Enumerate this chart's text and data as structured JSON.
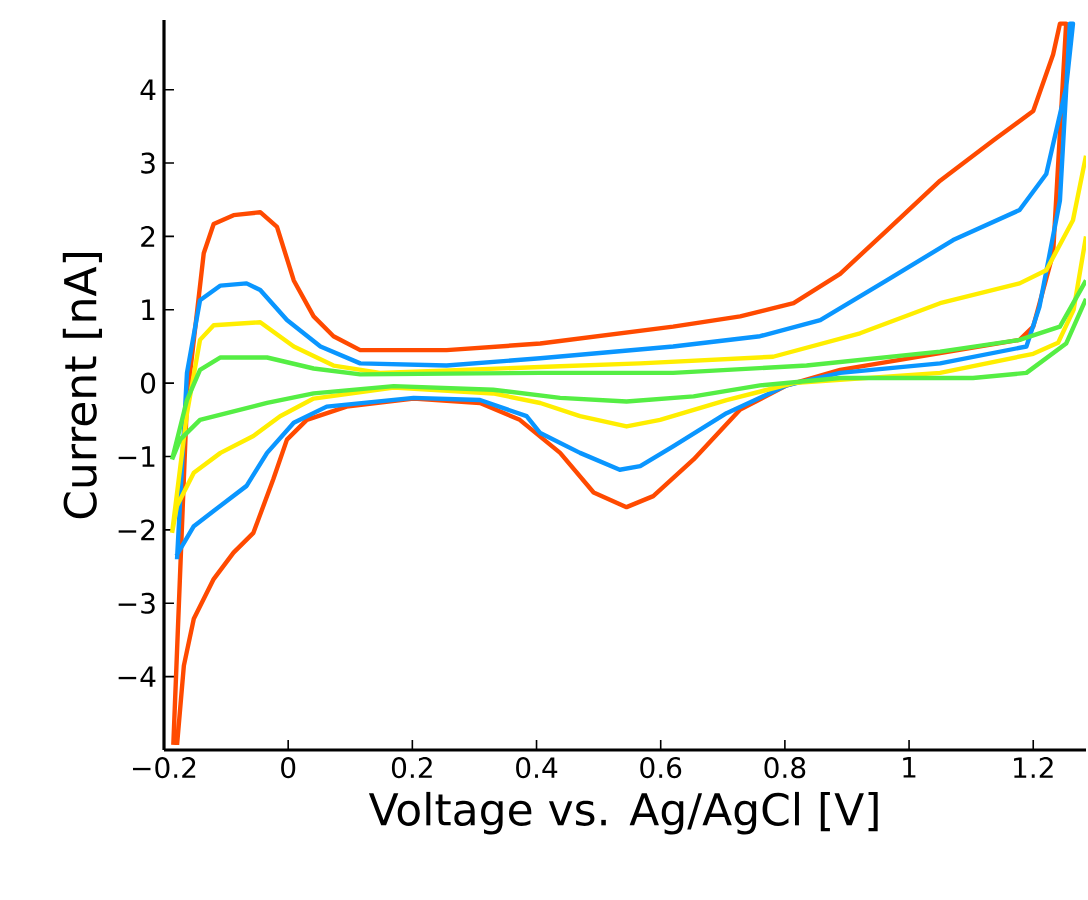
{
  "chart_data": {
    "type": "line",
    "xlabel": "Voltage vs. Ag/AgCl [V]",
    "ylabel": "Current [nA]",
    "xlim": [
      -0.2,
      1.285
    ],
    "ylim": [
      -5,
      4.95
    ],
    "xticks": [
      {
        "value": -0.2,
        "label": "−0.2"
      },
      0,
      0.2,
      0.4,
      0.6,
      0.8,
      1,
      1.2
    ],
    "yticks": [
      {
        "value": -4,
        "label": "−4"
      },
      {
        "value": -3,
        "label": "−3"
      },
      {
        "value": -2,
        "label": "−2"
      },
      {
        "value": -1,
        "label": "−1"
      },
      0,
      1,
      2,
      3,
      4
    ],
    "grid": false,
    "series": [
      {
        "color": "#ff4a00",
        "x": [
          -0.185,
          -0.163,
          -0.136,
          -0.12,
          -0.088,
          -0.045,
          -0.018,
          0.009,
          0.041,
          0.073,
          0.116,
          0.255,
          0.406,
          0.62,
          0.728,
          0.814,
          0.889,
          0.964,
          1.05,
          1.136,
          1.2,
          1.232,
          1.243,
          1.253,
          1.232,
          1.2,
          1.178,
          1.05,
          0.889,
          0.803,
          0.728,
          0.653,
          0.588,
          0.545,
          0.492,
          0.438,
          0.373,
          0.309,
          0.202,
          0.094,
          0.03,
          -0.002,
          -0.024,
          -0.056,
          -0.088,
          -0.12,
          -0.152,
          -0.168,
          -0.179
        ],
        "values": [
          -4.93,
          -0.23,
          1.77,
          2.17,
          2.29,
          2.33,
          2.13,
          1.4,
          0.91,
          0.64,
          0.45,
          0.45,
          0.54,
          0.77,
          0.91,
          1.09,
          1.49,
          2.08,
          2.76,
          3.31,
          3.71,
          4.48,
          4.9,
          4.9,
          1.77,
          0.77,
          0.59,
          0.41,
          0.18,
          -0.03,
          -0.36,
          -1.04,
          -1.54,
          -1.69,
          -1.49,
          -0.95,
          -0.5,
          -0.27,
          -0.21,
          -0.32,
          -0.5,
          -0.77,
          -1.31,
          -2.04,
          -2.31,
          -2.67,
          -3.21,
          -3.85,
          -4.93
        ]
      },
      {
        "color": "#0a96ff",
        "x": [
          -0.179,
          -0.163,
          -0.142,
          -0.109,
          -0.067,
          -0.045,
          -0.002,
          0.052,
          0.116,
          0.255,
          0.406,
          0.62,
          0.76,
          0.857,
          0.964,
          1.071,
          1.178,
          1.221,
          1.253,
          1.264,
          1.259,
          1.243,
          1.21,
          1.189,
          1.05,
          0.889,
          0.803,
          0.706,
          0.62,
          0.567,
          0.534,
          0.47,
          0.406,
          0.384,
          0.309,
          0.202,
          0.062,
          0.009,
          -0.034,
          -0.067,
          -0.109,
          -0.152,
          -0.18
        ],
        "values": [
          -2.4,
          0.14,
          1.13,
          1.33,
          1.36,
          1.27,
          0.86,
          0.5,
          0.27,
          0.24,
          0.34,
          0.5,
          0.64,
          0.86,
          1.4,
          1.95,
          2.36,
          2.85,
          4.03,
          4.9,
          4.9,
          2.49,
          1.04,
          0.5,
          0.27,
          0.14,
          -0.03,
          -0.41,
          -0.86,
          -1.13,
          -1.18,
          -0.95,
          -0.68,
          -0.45,
          -0.23,
          -0.2,
          -0.32,
          -0.54,
          -0.95,
          -1.4,
          -1.67,
          -1.95,
          -2.35
        ]
      },
      {
        "color": "#ffee00",
        "x": [
          -0.187,
          -0.163,
          -0.142,
          -0.12,
          -0.045,
          0.009,
          0.073,
          0.148,
          0.438,
          0.567,
          0.781,
          0.921,
          1.05,
          1.178,
          1.221,
          1.264,
          1.285,
          null,
          1.285,
          1.265,
          1.24,
          1.2,
          1.05,
          0.814,
          0.706,
          0.599,
          0.545,
          0.47,
          0.406,
          0.33,
          0.17,
          0.041,
          -0.013,
          -0.056,
          -0.109,
          -0.152,
          -0.179,
          -0.187
        ],
        "values": [
          -2.04,
          -0.41,
          0.59,
          0.79,
          0.83,
          0.5,
          0.24,
          0.14,
          0.23,
          0.27,
          0.36,
          0.68,
          1.09,
          1.36,
          1.54,
          2.22,
          3.1,
          null,
          2.0,
          1.0,
          0.55,
          0.4,
          0.14,
          0.0,
          -0.23,
          -0.5,
          -0.59,
          -0.45,
          -0.27,
          -0.14,
          -0.06,
          -0.21,
          -0.45,
          -0.72,
          -0.95,
          -1.22,
          -1.67,
          -2.04
        ]
      },
      {
        "color": "#55ee44",
        "x": [
          -0.187,
          -0.163,
          -0.142,
          -0.109,
          -0.034,
          0.041,
          0.116,
          0.406,
          0.62,
          0.835,
          1.05,
          1.178,
          1.243,
          1.285,
          null,
          1.285,
          1.253,
          1.189,
          1.103,
          0.889,
          0.76,
          0.653,
          0.545,
          0.438,
          0.33,
          0.17,
          0.041,
          -0.034,
          -0.099,
          -0.142,
          -0.174,
          -0.187
        ],
        "values": [
          -1.04,
          -0.23,
          0.18,
          0.35,
          0.35,
          0.2,
          0.12,
          0.14,
          0.14,
          0.24,
          0.43,
          0.59,
          0.77,
          1.4,
          null,
          1.15,
          0.54,
          0.14,
          0.07,
          0.07,
          -0.03,
          -0.18,
          -0.25,
          -0.2,
          -0.09,
          -0.04,
          -0.14,
          -0.27,
          -0.41,
          -0.5,
          -0.77,
          -1.04
        ]
      }
    ]
  }
}
